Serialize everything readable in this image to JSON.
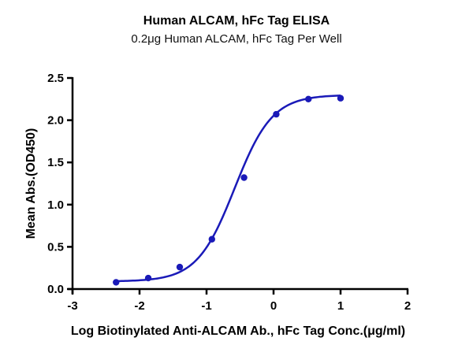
{
  "chart_data": {
    "type": "line",
    "title": "Human ALCAM, hFc Tag ELISA",
    "subtitle": "0.2μg Human ALCAM, hFc Tag Per Well",
    "xlabel": "Log Biotinylated Anti-ALCAM Ab., hFc Tag Conc.(μg/ml)",
    "ylabel": "Mean Abs.(OD450)",
    "xlim": [
      -3,
      2
    ],
    "ylim": [
      0,
      2.5
    ],
    "x_ticks": [
      "-3",
      "-2",
      "-1",
      "0",
      "1",
      "2"
    ],
    "y_ticks": [
      "0.0",
      "0.5",
      "1.0",
      "1.5",
      "2.0",
      "2.5"
    ],
    "grid": false,
    "legend": null,
    "series": [
      {
        "name": "Human ALCAM, hFc Tag",
        "color": "#1a1ab8",
        "fit": "4-parameter logistic (sigmoidal)",
        "x": [
          -2.35,
          -1.87,
          -1.4,
          -0.92,
          -0.44,
          0.04,
          0.52,
          1.0
        ],
        "values": [
          0.08,
          0.13,
          0.26,
          0.59,
          1.32,
          2.07,
          2.25,
          2.26
        ]
      }
    ]
  }
}
